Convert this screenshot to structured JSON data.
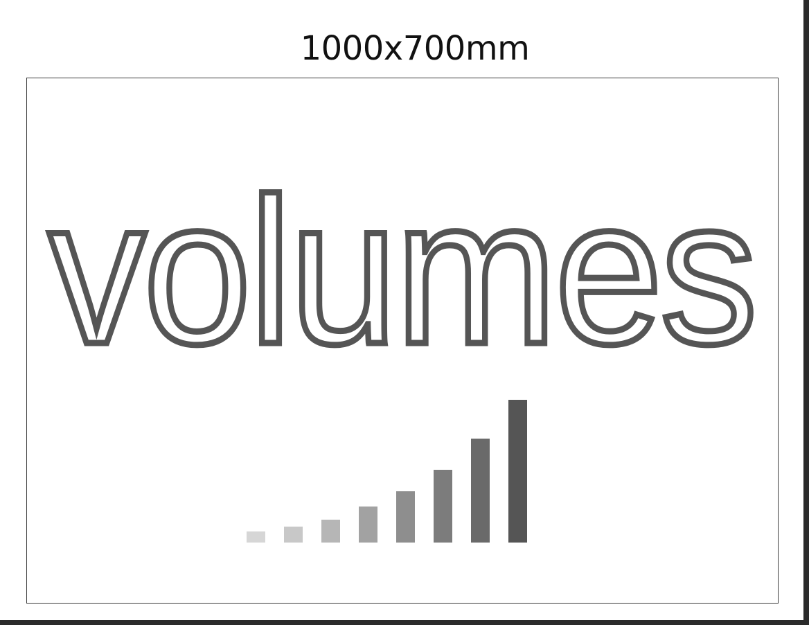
{
  "sign": {
    "dimensions": "1000x700mm",
    "word": "volumes"
  },
  "level_meter": {
    "icon": "volume-level-bars-icon",
    "bars": [
      {
        "level": 0.08,
        "color": "#d6d6d6"
      },
      {
        "level": 0.11,
        "color": "#c8c8c8"
      },
      {
        "level": 0.16,
        "color": "#b6b6b6"
      },
      {
        "level": 0.25,
        "color": "#a2a2a2"
      },
      {
        "level": 0.36,
        "color": "#8e8e8e"
      },
      {
        "level": 0.51,
        "color": "#7c7c7c"
      },
      {
        "level": 0.73,
        "color": "#6a6a6a"
      },
      {
        "level": 1.0,
        "color": "#555555"
      }
    ]
  }
}
